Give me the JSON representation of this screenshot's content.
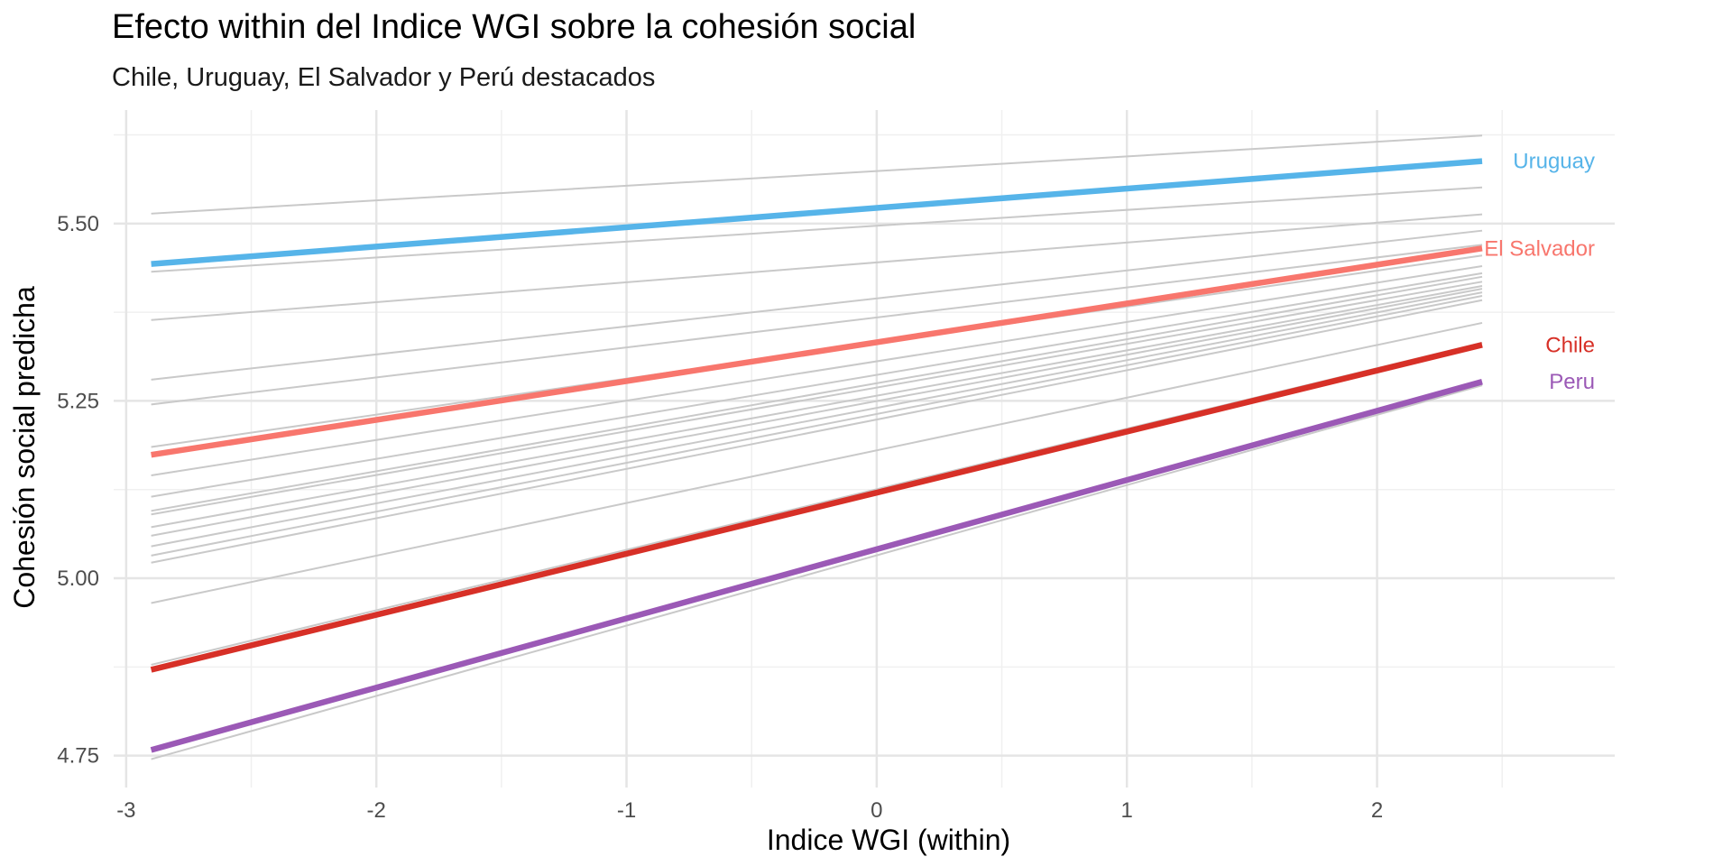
{
  "chart_data": {
    "type": "line",
    "title": "Efecto within del Indice WGI sobre la cohesión social",
    "subtitle": "Chile, Uruguay, El Salvador y Perú destacados",
    "xlabel": "Indice WGI (within)",
    "ylabel": "Cohesión social predicha",
    "xlim": [
      -3.05,
      2.95
    ],
    "ylim": [
      4.705,
      5.66
    ],
    "x_ticks": [
      -3,
      -2,
      -1,
      0,
      1,
      2
    ],
    "x_tick_labels": [
      "-3",
      "-2",
      "-1",
      "0",
      "1",
      "2"
    ],
    "y_ticks": [
      4.75,
      5.0,
      5.25,
      5.5
    ],
    "y_tick_labels": [
      "4.75",
      "5.00",
      "5.25",
      "5.50"
    ],
    "grid": true,
    "legend": "none",
    "highlight_series": [
      {
        "name": "Uruguay",
        "color": "#56b4e9",
        "x": [
          -2.9,
          2.42
        ],
        "y": [
          5.443,
          5.588
        ]
      },
      {
        "name": "El Salvador",
        "color": "#f8766d",
        "x": [
          -2.9,
          2.42
        ],
        "y": [
          5.174,
          5.465
        ]
      },
      {
        "name": "Chile",
        "color": "#d73027",
        "x": [
          -2.9,
          2.42
        ],
        "y": [
          4.871,
          5.329
        ]
      },
      {
        "name": "Peru",
        "color": "#9b59b6",
        "x": [
          -2.9,
          2.42
        ],
        "y": [
          4.758,
          5.277
        ]
      }
    ],
    "background_series": [
      {
        "x": [
          -2.9,
          2.42
        ],
        "y": [
          5.514,
          5.624
        ]
      },
      {
        "x": [
          -2.9,
          2.42
        ],
        "y": [
          5.432,
          5.551
        ]
      },
      {
        "x": [
          -2.9,
          2.42
        ],
        "y": [
          5.364,
          5.513
        ]
      },
      {
        "x": [
          -2.9,
          2.42
        ],
        "y": [
          5.28,
          5.49
        ]
      },
      {
        "x": [
          -2.9,
          2.42
        ],
        "y": [
          5.245,
          5.47
        ]
      },
      {
        "x": [
          -2.9,
          2.42
        ],
        "y": [
          5.185,
          5.455
        ]
      },
      {
        "x": [
          -2.9,
          2.42
        ],
        "y": [
          5.145,
          5.44
        ]
      },
      {
        "x": [
          -2.9,
          2.42
        ],
        "y": [
          5.115,
          5.43
        ]
      },
      {
        "x": [
          -2.9,
          2.42
        ],
        "y": [
          5.095,
          5.425
        ]
      },
      {
        "x": [
          -2.9,
          2.42
        ],
        "y": [
          5.09,
          5.418
        ]
      },
      {
        "x": [
          -2.9,
          2.42
        ],
        "y": [
          5.072,
          5.412
        ]
      },
      {
        "x": [
          -2.9,
          2.42
        ],
        "y": [
          5.06,
          5.408
        ]
      },
      {
        "x": [
          -2.9,
          2.42
        ],
        "y": [
          5.045,
          5.403
        ]
      },
      {
        "x": [
          -2.9,
          2.42
        ],
        "y": [
          5.032,
          5.398
        ]
      },
      {
        "x": [
          -2.9,
          2.42
        ],
        "y": [
          5.022,
          5.392
        ]
      },
      {
        "x": [
          -2.9,
          2.42
        ],
        "y": [
          4.965,
          5.36
        ]
      },
      {
        "x": [
          -2.9,
          2.42
        ],
        "y": [
          4.878,
          5.332
        ]
      },
      {
        "x": [
          -2.9,
          2.42
        ],
        "y": [
          4.745,
          5.272
        ]
      }
    ],
    "colors": {
      "background_line": "#c9c9c9",
      "grid_major": "#e5e5e5",
      "grid_minor": "#f0f0f0"
    }
  }
}
